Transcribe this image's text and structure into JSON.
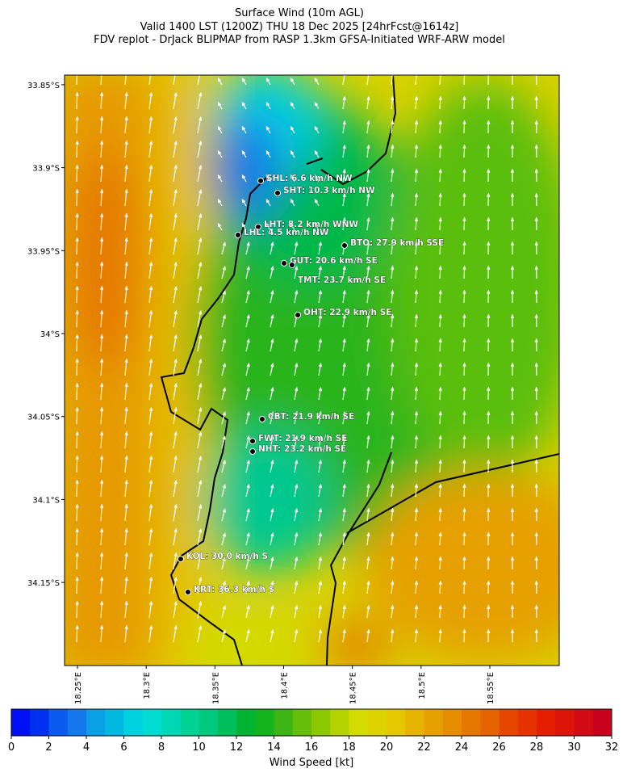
{
  "chart_data": {
    "type": "map",
    "title": [
      "Surface Wind (10m AGL)",
      "Valid 1400 LST (1200Z) THU 18 Dec 2025 [24hrFcst@1614z]",
      "FDV replot - DrJack BLIPMAP from RASP 1.3km GFSA-Initiated WRF-ARW model"
    ],
    "xlim": [
      18.2406,
      18.6005
    ],
    "ylim": [
      -34.2001,
      -33.8442
    ],
    "xticks": [
      {
        "value": 18.25,
        "label": "18.25°E"
      },
      {
        "value": 18.3,
        "label": "18.3°E"
      },
      {
        "value": 18.35,
        "label": "18.35°E"
      },
      {
        "value": 18.4,
        "label": "18.4°E"
      },
      {
        "value": 18.45,
        "label": "18.45°E"
      },
      {
        "value": 18.5,
        "label": "18.5°E"
      },
      {
        "value": 18.55,
        "label": "18.55°E"
      }
    ],
    "yticks": [
      {
        "value": -33.85,
        "label": "33.85°S"
      },
      {
        "value": -33.9,
        "label": "33.9°S"
      },
      {
        "value": -33.95,
        "label": "33.95°S"
      },
      {
        "value": -34.0,
        "label": "34°S"
      },
      {
        "value": -34.05,
        "label": "34.05°S"
      },
      {
        "value": -34.1,
        "label": "34.1°S"
      },
      {
        "value": -34.15,
        "label": "34.15°S"
      }
    ],
    "stations": [
      {
        "label": "SHL: 6.6 km/h NW",
        "lon": 18.3833,
        "lat": -33.9079
      },
      {
        "label": "SHT: 10.3 km/h NW",
        "lon": 18.3956,
        "lat": -33.9153
      },
      {
        "label": "LHT: 8.2 km/h WNW",
        "lon": 18.3815,
        "lat": -33.9357
      },
      {
        "label": "LHL: 4.5 km/h NW",
        "lon": 18.3668,
        "lat": -33.9406
      },
      {
        "label": "BTO: 27.9 km/h SSE",
        "lon": 18.4443,
        "lat": -33.9469
      },
      {
        "label": "GUT: 20.6 km/h SE",
        "lon": 18.4003,
        "lat": -33.9576
      },
      {
        "label": "TMT: 23.7 km/h SE",
        "lon": 18.4061,
        "lat": -33.9586
      },
      {
        "label": "OHT: 22.9 km/h SE",
        "lon": 18.4103,
        "lat": -33.9888
      },
      {
        "label": "CBT: 21.9 km/h SE",
        "lon": 18.3844,
        "lat": -34.0516
      },
      {
        "label": "FWT: 21.9 km/h SE",
        "lon": 18.3774,
        "lat": -34.0648
      },
      {
        "label": "NHT: 23.2 km/h SE",
        "lon": 18.3774,
        "lat": -34.0711
      },
      {
        "label": "KOL: 30.0 km/h S",
        "lon": 18.3251,
        "lat": -34.1359
      },
      {
        "label": "KRT: 36.3 km/h S",
        "lon": 18.3304,
        "lat": -34.1558
      }
    ],
    "colorbar": {
      "label": "Wind Speed [kt]",
      "lim": [
        0,
        32
      ],
      "ticks": [
        0,
        2,
        4,
        6,
        8,
        10,
        12,
        14,
        16,
        18,
        20,
        22,
        24,
        26,
        28,
        30,
        32
      ],
      "colors": [
        "#0010f5",
        "#0030f0",
        "#0a5af0",
        "#1478eb",
        "#0aa0e6",
        "#00b8e0",
        "#00d2e0",
        "#00dcd2",
        "#00d7b4",
        "#00d296",
        "#00c87d",
        "#00be5a",
        "#00b432",
        "#14b41e",
        "#3cb414",
        "#64be0a",
        "#8cc800",
        "#b4d200",
        "#d2dc00",
        "#dcd200",
        "#e6c800",
        "#e6b400",
        "#e6a000",
        "#e68c00",
        "#e67800",
        "#e66400",
        "#e64600",
        "#e63200",
        "#e61e00",
        "#dc140a",
        "#d20a14",
        "#c8001e"
      ]
    }
  }
}
